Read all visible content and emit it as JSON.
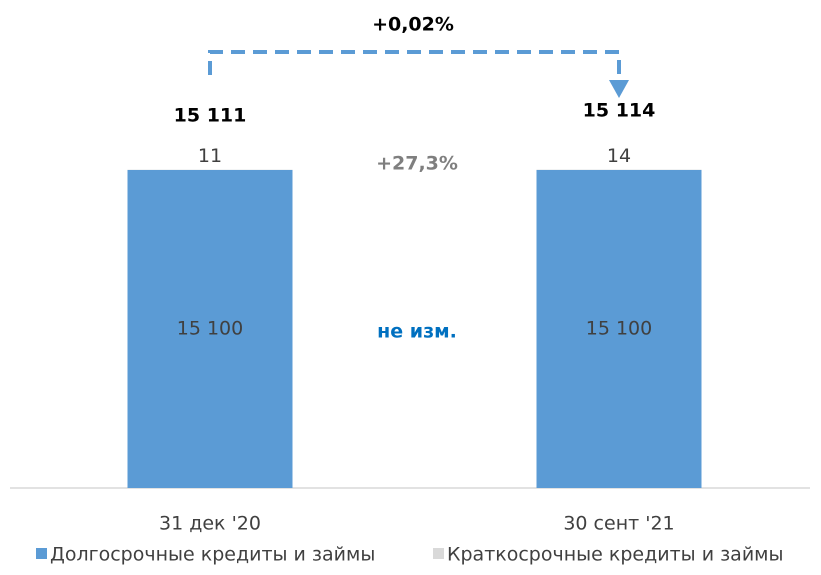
{
  "chart_data": {
    "type": "stacked_bar",
    "categories": [
      "31 дек '20",
      "30 сент '21"
    ],
    "series": [
      {
        "name": "Долгосрочные кредиты и займы",
        "color": "#5b9bd5",
        "values": [
          15100,
          15100
        ],
        "value_labels": [
          "15 100",
          "15 100"
        ]
      },
      {
        "name": "Краткосрочные кредиты и займы",
        "color": "#d9d9d9",
        "values": [
          11,
          14
        ]
      }
    ],
    "totals": {
      "values": [
        15111,
        15114
      ],
      "value_labels": [
        "15 111",
        "15 114"
      ]
    },
    "annotations": {
      "total_change": "+0,02%",
      "short_change": "+27,3%",
      "long_change": "не изм."
    },
    "ylim": [
      0,
      16000
    ],
    "legend": "bottom"
  }
}
